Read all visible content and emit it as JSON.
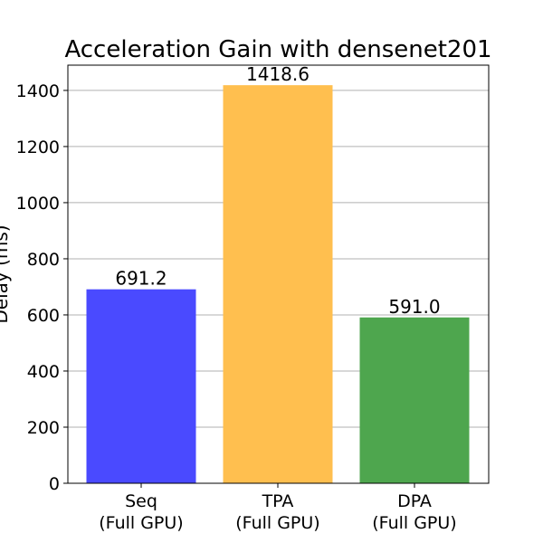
{
  "chart_data": {
    "type": "bar",
    "title": "Acceleration Gain with densenet201",
    "ylabel": "Delay (ms)",
    "xlabel": "",
    "categories": [
      [
        "Seq",
        "(Full GPU)"
      ],
      [
        "TPA",
        "(Full GPU)"
      ],
      [
        "DPA",
        "(Full GPU)"
      ]
    ],
    "values": [
      691.2,
      1418.6,
      591.0
    ],
    "value_labels": [
      "691.2",
      "1418.6",
      "591.0"
    ],
    "colors": [
      "#4a4aff",
      "#ffbf4f",
      "#4ea64e"
    ],
    "ylim": [
      0,
      1490
    ],
    "yticks": [
      0,
      200,
      400,
      600,
      800,
      1000,
      1200,
      1400
    ],
    "grid": "y"
  }
}
